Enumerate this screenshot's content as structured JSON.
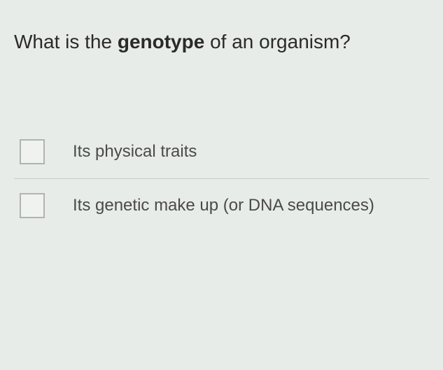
{
  "question": {
    "prefix": "What is the ",
    "bold_word": "genotype",
    "suffix": " of an organism?",
    "text_color": "#2a2a2a",
    "font_size": 28
  },
  "options": [
    {
      "label": "Its physical traits",
      "checked": false
    },
    {
      "label": "Its genetic make up (or DNA sequences)",
      "checked": false
    }
  ],
  "styling": {
    "background_color": "#e8ece8",
    "checkbox_border_color": "#b0b4b0",
    "checkbox_bg_color": "#f0f2f0",
    "checkbox_size": 36,
    "option_text_color": "#4a4a4a",
    "option_font_size": 24,
    "divider_color": "#c8ccc8"
  }
}
